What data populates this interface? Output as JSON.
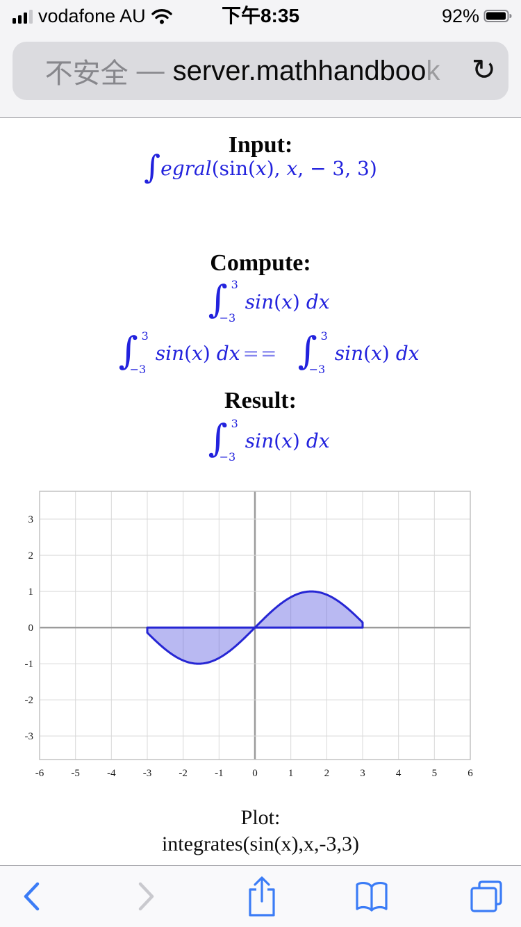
{
  "status_bar": {
    "carrier": "vodafone AU",
    "time": "下午8:35",
    "battery_percent": "92%"
  },
  "address_bar": {
    "security_label": "不安全",
    "separator": "—",
    "host": "server.mathhandboo",
    "host_fade": "k"
  },
  "icons": {
    "reload": "↻",
    "cellular": "signal-bars",
    "wifi": "wifi-arcs",
    "battery": "battery-fill",
    "back": "chevron-left",
    "forward": "chevron-right",
    "share": "share-up-arrow",
    "bookmarks": "open-book",
    "tabs": "overlapping-squares"
  },
  "sections": {
    "input_heading": "Input:",
    "compute_heading": "Compute:",
    "result_heading": "Result:"
  },
  "input_formula": {
    "integral_sign": "∫",
    "name_rest": "egral",
    "open": "(",
    "fn": "sin",
    "open2": "(",
    "x1": "x",
    "mid": "), ",
    "x2": "x",
    "tail": ", − 3, 3)"
  },
  "integral_formula": {
    "sign": "∫",
    "upper": "3",
    "lower": "−3",
    "fn": "sin",
    "open": "(",
    "x": "x",
    "close": ")",
    "dx": "dx"
  },
  "equality_op": "==",
  "plot_caption": {
    "title": "Plot:",
    "expression": "integrates(sin(x),x,-3,3)"
  },
  "chart_data": {
    "type": "area",
    "title": "",
    "function": "sin(x)",
    "fill_range": [
      -3,
      3
    ],
    "points": {
      "x": [
        -3,
        -2.5,
        -2,
        -1.5,
        -1,
        -0.5,
        0,
        0.5,
        1,
        1.5,
        2,
        2.5,
        3
      ],
      "y": [
        -0.141,
        -0.599,
        -0.909,
        -0.997,
        -0.841,
        -0.479,
        0,
        0.479,
        0.841,
        0.997,
        0.909,
        0.599,
        0.141
      ]
    },
    "xlim": [
      -6,
      6
    ],
    "ylim": [
      -3.65,
      3.77
    ],
    "x_ticks": [
      -6,
      -5,
      -4,
      -3,
      -2,
      -1,
      0,
      1,
      2,
      3,
      4,
      5,
      6
    ],
    "y_ticks": [
      3,
      2,
      1,
      0,
      -1,
      -2,
      -3
    ],
    "grid": true,
    "legend": false,
    "colors": {
      "curve": "#2626d4",
      "fill": "#4444dd",
      "grid": "#d9d9d9",
      "axis": "#9b9b9b",
      "border": "#c2c2c2",
      "tick_text": "#1a1a1a"
    }
  }
}
